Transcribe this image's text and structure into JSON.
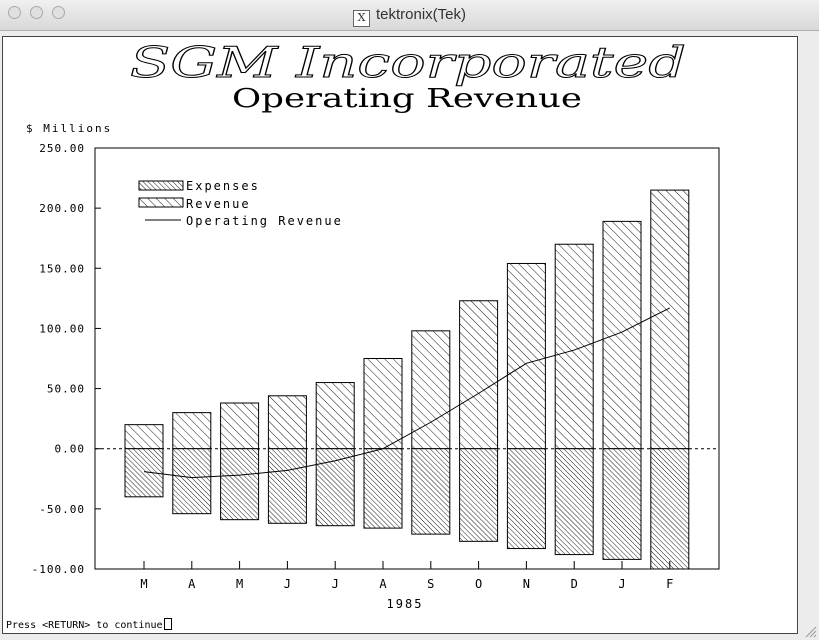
{
  "window": {
    "title": "tektronix(Tek)",
    "app_icon": "x-window-icon"
  },
  "status": {
    "prompt": "Press <RETURN> to continue"
  },
  "chart_data": {
    "type": "bar",
    "title": "SGM Incorporated",
    "subtitle": "Operating Revenue",
    "ylabel": "$ Millions",
    "xlabel": "1985",
    "categories": [
      "M",
      "A",
      "M",
      "J",
      "J",
      "A",
      "S",
      "O",
      "N",
      "D",
      "J",
      "F"
    ],
    "ylim": [
      -100,
      250
    ],
    "yticks": [
      "250.00",
      "200.00",
      "150.00",
      "100.00",
      "50.00",
      "0.00",
      "-50.00",
      "-100.00"
    ],
    "ytick_values": [
      250,
      200,
      150,
      100,
      50,
      0,
      -50,
      -100
    ],
    "legend_position": "top-left",
    "series": [
      {
        "name": "Expenses",
        "kind": "bar",
        "values": [
          -40,
          -54,
          -59,
          -62,
          -64,
          -66,
          -71,
          -77,
          -83,
          -88,
          -92,
          -100
        ]
      },
      {
        "name": "Revenue",
        "kind": "bar",
        "values": [
          20,
          30,
          38,
          44,
          55,
          75,
          98,
          123,
          154,
          170,
          189,
          215
        ]
      },
      {
        "name": "Operating Revenue",
        "kind": "line",
        "values": [
          -19,
          -24,
          -22,
          -18,
          -10,
          0,
          22,
          46,
          71,
          82,
          97,
          117
        ]
      }
    ]
  }
}
